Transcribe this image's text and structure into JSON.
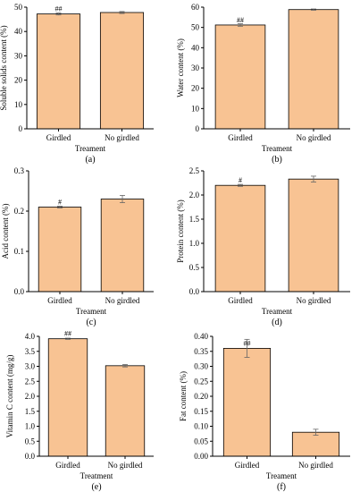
{
  "colors": {
    "bar_fill": "#F8C393",
    "axis": "#000000",
    "error_bar": "#666666"
  },
  "chart_data": [
    {
      "type": "bar",
      "panel_label": "(a)",
      "categories": [
        "Girdled",
        "No girdled"
      ],
      "values": [
        47.2,
        47.8
      ],
      "errors": [
        0.4,
        0.4
      ],
      "annotations": [
        "##",
        ""
      ],
      "xlabel": "Treament",
      "ylabel": "Soluble solids content (%)",
      "ylim": [
        0,
        50
      ],
      "yticks": [
        0,
        10,
        20,
        30,
        40,
        50
      ],
      "ytick_labels": [
        "0",
        "10",
        "20",
        "30",
        "40",
        "50"
      ]
    },
    {
      "type": "bar",
      "panel_label": "(b)",
      "categories": [
        "Girdled",
        "No girdled"
      ],
      "values": [
        51.2,
        58.8
      ],
      "errors": [
        0.6,
        0.3
      ],
      "annotations": [
        "##",
        ""
      ],
      "xlabel": "Treament",
      "ylabel": "Water content (%)",
      "ylim": [
        0,
        60
      ],
      "yticks": [
        0,
        10,
        20,
        30,
        40,
        50,
        60
      ],
      "ytick_labels": [
        "0",
        "10",
        "20",
        "30",
        "40",
        "50",
        "60"
      ]
    },
    {
      "type": "bar",
      "panel_label": "(c)",
      "categories": [
        "Girdled",
        "No girdled"
      ],
      "values": [
        0.21,
        0.23
      ],
      "errors": [
        0.002,
        0.009
      ],
      "annotations": [
        "#",
        ""
      ],
      "xlabel": "Treament",
      "ylabel": "Acid content (%)",
      "ylim": [
        0,
        0.3
      ],
      "yticks": [
        0,
        0.1,
        0.2,
        0.3
      ],
      "ytick_labels": [
        "0.0",
        "0.1",
        "0.2",
        "0.3"
      ]
    },
    {
      "type": "bar",
      "panel_label": "(d)",
      "categories": [
        "Girdled",
        "No girdled"
      ],
      "values": [
        2.2,
        2.33
      ],
      "errors": [
        0.02,
        0.06
      ],
      "annotations": [
        "#",
        ""
      ],
      "xlabel": "Treament",
      "ylabel": "Protein content (%)",
      "ylim": [
        0,
        2.5
      ],
      "yticks": [
        0,
        0.5,
        1.0,
        1.5,
        2.0,
        2.5
      ],
      "ytick_labels": [
        "0.0",
        "0.5",
        "1.0",
        "1.5",
        "2.0",
        "2.5"
      ]
    },
    {
      "type": "bar",
      "panel_label": "(e)",
      "categories": [
        "Girdled",
        "No girdled"
      ],
      "values": [
        3.92,
        3.02
      ],
      "errors": [
        0.02,
        0.04
      ],
      "annotations": [
        "##",
        ""
      ],
      "xlabel": "Treatment",
      "ylabel": "Vitamin C content (mg/g)",
      "ylim": [
        0,
        4.0
      ],
      "yticks": [
        0,
        0.5,
        1.0,
        1.5,
        2.0,
        2.5,
        3.0,
        3.5,
        4.0
      ],
      "ytick_labels": [
        "0.0",
        "0.5",
        "1.0",
        "1.5",
        "2.0",
        "2.5",
        "3.0",
        "3.5",
        "4.0"
      ]
    },
    {
      "type": "bar",
      "panel_label": "(f)",
      "categories": [
        "Girdled",
        "No girdled"
      ],
      "values": [
        0.36,
        0.08
      ],
      "errors": [
        0.03,
        0.01
      ],
      "annotations": [
        "##",
        ""
      ],
      "xlabel": "Treament",
      "ylabel": "Fat content (%)",
      "ylim": [
        0,
        0.4
      ],
      "yticks": [
        0,
        0.05,
        0.1,
        0.15,
        0.2,
        0.25,
        0.3,
        0.35,
        0.4
      ],
      "ytick_labels": [
        "0.00",
        "0.05",
        "0.10",
        "0.15",
        "0.20",
        "0.25",
        "0.30",
        "0.35",
        "0.40"
      ]
    }
  ]
}
